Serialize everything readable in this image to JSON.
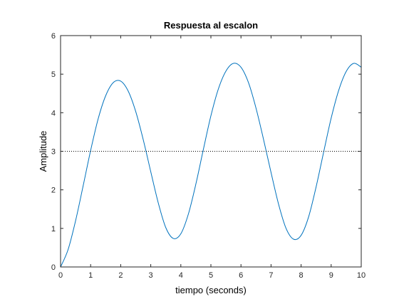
{
  "figure": {
    "background": "#ffffff"
  },
  "chart_data": {
    "type": "line",
    "title": "Respuesta al escalon",
    "xlabel": "tiempo (seconds)",
    "ylabel": "Amplitude",
    "xlim": [
      0,
      10
    ],
    "ylim": [
      0,
      6
    ],
    "xticks": [
      0,
      1,
      2,
      3,
      4,
      5,
      6,
      7,
      8,
      9,
      10
    ],
    "yticks": [
      0,
      1,
      2,
      3,
      4,
      5,
      6
    ],
    "grid": false,
    "legend": "none",
    "series": [
      {
        "color": "#0072bd",
        "x": [
          0,
          0.25,
          0.5,
          0.75,
          1.0,
          1.25,
          1.5,
          1.75,
          2.0,
          2.25,
          2.5,
          2.75,
          3.0,
          3.25,
          3.5,
          3.75,
          4.0,
          4.25,
          4.5,
          4.75,
          5.0,
          5.25,
          5.5,
          5.75,
          6.0,
          6.25,
          6.5,
          6.75,
          7.0,
          7.25,
          7.5,
          7.75,
          8.0,
          8.25,
          8.5,
          8.75,
          9.0,
          9.25,
          9.5,
          9.75,
          10.0
        ],
        "y": [
          0.0,
          0.45,
          1.2,
          2.1,
          3.02,
          3.84,
          4.44,
          4.78,
          4.82,
          4.56,
          4.03,
          3.3,
          2.47,
          1.66,
          1.02,
          0.74,
          0.86,
          1.37,
          2.15,
          3.05,
          3.92,
          4.62,
          5.08,
          5.28,
          5.18,
          4.78,
          4.12,
          3.31,
          2.45,
          1.63,
          1.0,
          0.72,
          0.82,
          1.3,
          2.08,
          2.98,
          3.86,
          4.58,
          5.07,
          5.28,
          5.18
        ],
        "smooth": true
      },
      {
        "color": "#000000",
        "style": "dotted",
        "x": [
          0,
          10
        ],
        "y": [
          3,
          3
        ]
      }
    ]
  }
}
